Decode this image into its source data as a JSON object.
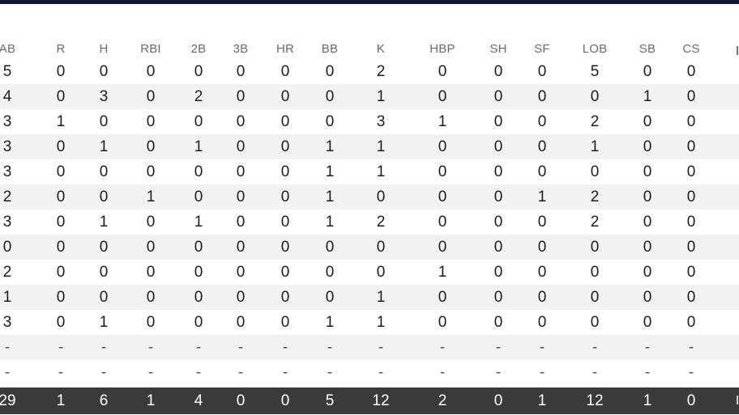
{
  "table": {
    "columns": [
      "AB",
      "R",
      "H",
      "RBI",
      "2B",
      "3B",
      "HR",
      "BB",
      "K",
      "HBP",
      "SH",
      "SF",
      "LOB",
      "SB",
      "CS"
    ],
    "rows": [
      [
        "5",
        "0",
        "0",
        "0",
        "0",
        "0",
        "0",
        "0",
        "2",
        "0",
        "0",
        "0",
        "5",
        "0",
        "0"
      ],
      [
        "4",
        "0",
        "3",
        "0",
        "2",
        "0",
        "0",
        "0",
        "1",
        "0",
        "0",
        "0",
        "0",
        "1",
        "0"
      ],
      [
        "3",
        "1",
        "0",
        "0",
        "0",
        "0",
        "0",
        "0",
        "3",
        "1",
        "0",
        "0",
        "2",
        "0",
        "0"
      ],
      [
        "3",
        "0",
        "1",
        "0",
        "1",
        "0",
        "0",
        "1",
        "1",
        "0",
        "0",
        "0",
        "1",
        "0",
        "0"
      ],
      [
        "3",
        "0",
        "0",
        "0",
        "0",
        "0",
        "0",
        "1",
        "1",
        "0",
        "0",
        "0",
        "0",
        "0",
        "0"
      ],
      [
        "2",
        "0",
        "0",
        "1",
        "0",
        "0",
        "0",
        "1",
        "0",
        "0",
        "0",
        "1",
        "2",
        "0",
        "0"
      ],
      [
        "3",
        "0",
        "1",
        "0",
        "1",
        "0",
        "0",
        "1",
        "2",
        "0",
        "0",
        "0",
        "2",
        "0",
        "0"
      ],
      [
        "0",
        "0",
        "0",
        "0",
        "0",
        "0",
        "0",
        "0",
        "0",
        "0",
        "0",
        "0",
        "0",
        "0",
        "0"
      ],
      [
        "2",
        "0",
        "0",
        "0",
        "0",
        "0",
        "0",
        "0",
        "0",
        "1",
        "0",
        "0",
        "0",
        "0",
        "0"
      ],
      [
        "1",
        "0",
        "0",
        "0",
        "0",
        "0",
        "0",
        "0",
        "1",
        "0",
        "0",
        "0",
        "0",
        "0",
        "0"
      ],
      [
        "3",
        "0",
        "1",
        "0",
        "0",
        "0",
        "0",
        "1",
        "1",
        "0",
        "0",
        "0",
        "0",
        "0",
        "0"
      ],
      [
        "-",
        "-",
        "-",
        "-",
        "-",
        "-",
        "-",
        "-",
        "-",
        "-",
        "-",
        "-",
        "-",
        "-",
        "-"
      ],
      [
        "-",
        "-",
        "-",
        "-",
        "-",
        "-",
        "-",
        "-",
        "-",
        "-",
        "-",
        "-",
        "-",
        "-",
        "-"
      ]
    ],
    "totals": [
      "29",
      "1",
      "6",
      "1",
      "4",
      "0",
      "0",
      "5",
      "12",
      "2",
      "0",
      "1",
      "12",
      "1",
      "0"
    ]
  },
  "colors": {
    "top_border": "#13183a",
    "alt_row": "#f2f2f2",
    "totals_row": "#3b3b3b"
  }
}
